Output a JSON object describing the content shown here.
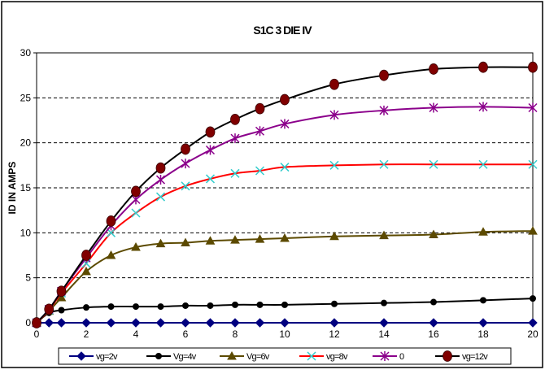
{
  "chart_data": {
    "type": "line",
    "title": "S1C 3 DIE  IV",
    "xlabel": "",
    "ylabel": "ID IN AMPS",
    "xlim": [
      0,
      20
    ],
    "ylim": [
      0,
      30
    ],
    "x_ticks": [
      0,
      2,
      4,
      6,
      8,
      10,
      12,
      14,
      16,
      18,
      20
    ],
    "y_ticks": [
      0,
      5,
      10,
      15,
      20,
      25,
      30
    ],
    "grid": "horizontal-dashed",
    "legend_position": "bottom",
    "x": [
      0,
      0.5,
      1,
      2,
      3,
      4,
      5,
      6,
      7,
      8,
      9,
      10,
      12,
      14,
      16,
      18,
      20
    ],
    "series": [
      {
        "name": "vg=2v",
        "color": "#000080",
        "marker": "diamond",
        "values": [
          0,
          0,
          0,
          0,
          0,
          0,
          0,
          0,
          0,
          0,
          0,
          0,
          0,
          0,
          0,
          0,
          0
        ]
      },
      {
        "name": "Vg=4v",
        "color": "#000000",
        "marker": "circle",
        "values": [
          0,
          1.1,
          1.4,
          1.7,
          1.8,
          1.8,
          1.8,
          1.9,
          1.9,
          2.0,
          2.0,
          2.0,
          2.1,
          2.2,
          2.3,
          2.5,
          2.7
        ]
      },
      {
        "name": "Vg=6v",
        "color": "#5c4a00",
        "marker": "triangle",
        "values": [
          0,
          1.3,
          2.8,
          5.7,
          7.5,
          8.4,
          8.8,
          8.9,
          9.1,
          9.2,
          9.3,
          9.4,
          9.6,
          9.7,
          9.8,
          10.1,
          10.2
        ]
      },
      {
        "name": "vg=8v",
        "color": "#ff0000",
        "marker": "x-cross",
        "marker_color": "#33cccc",
        "values": [
          0,
          1.4,
          3.3,
          6.6,
          10.0,
          12.2,
          14.0,
          15.2,
          16.0,
          16.6,
          16.9,
          17.3,
          17.5,
          17.6,
          17.6,
          17.6,
          17.6
        ]
      },
      {
        "name": "0",
        "color": "#8b008b",
        "marker": "asterisk",
        "values": [
          0,
          1.5,
          3.5,
          7.2,
          10.8,
          13.7,
          15.9,
          17.7,
          19.2,
          20.5,
          21.3,
          22.1,
          23.1,
          23.6,
          23.9,
          24.0,
          23.9
        ]
      },
      {
        "name": "vg=12v",
        "color": "#000000",
        "marker": "big-circle",
        "marker_color": "#800000",
        "values": [
          0,
          1.5,
          3.5,
          7.5,
          11.3,
          14.6,
          17.2,
          19.3,
          21.2,
          22.6,
          23.8,
          24.8,
          26.5,
          27.5,
          28.2,
          28.4,
          28.4
        ]
      }
    ]
  }
}
